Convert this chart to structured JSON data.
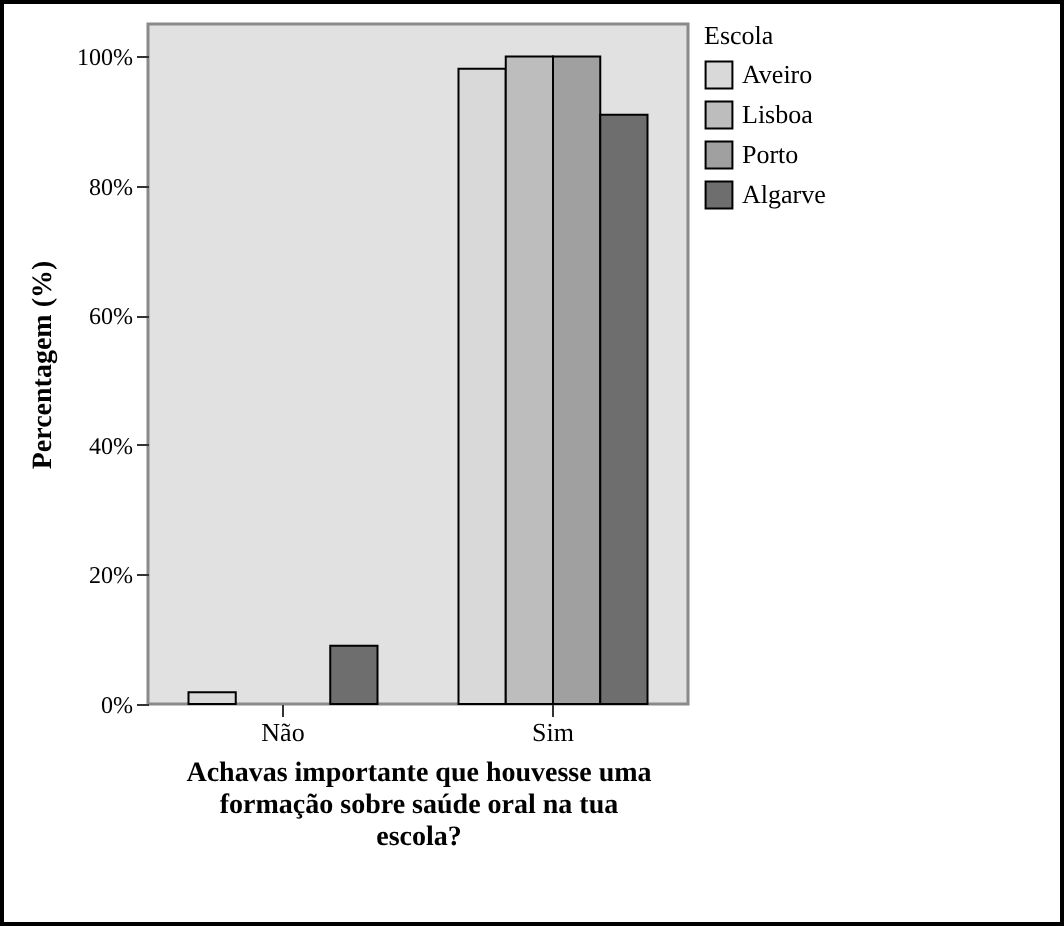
{
  "chart_data": {
    "type": "bar",
    "xlabel": "Achavas importante que houvesse uma formação sobre saúde oral na tua escola?",
    "ylabel": "Percentagem (%)",
    "legend_title": "Escola",
    "categories": [
      "Não",
      "Sim"
    ],
    "series": [
      {
        "name": "Aveiro",
        "color": "#d9d9d9",
        "values": [
          1.8,
          98.1
        ]
      },
      {
        "name": "Lisboa",
        "color": "#bdbdbd",
        "values": [
          0,
          100
        ]
      },
      {
        "name": "Porto",
        "color": "#a0a0a0",
        "values": [
          0,
          100
        ]
      },
      {
        "name": "Algarve",
        "color": "#6e6e6e",
        "values": [
          9,
          91
        ]
      }
    ],
    "ylim": [
      0,
      105
    ],
    "yticks": [
      {
        "value": 0,
        "label": "0%"
      },
      {
        "value": 20,
        "label": "20%"
      },
      {
        "value": 40,
        "label": "40%"
      },
      {
        "value": 60,
        "label": "60%"
      },
      {
        "value": 80,
        "label": "80%"
      },
      {
        "value": 100,
        "label": "100%"
      }
    ],
    "grid": false,
    "legend": "top right"
  }
}
